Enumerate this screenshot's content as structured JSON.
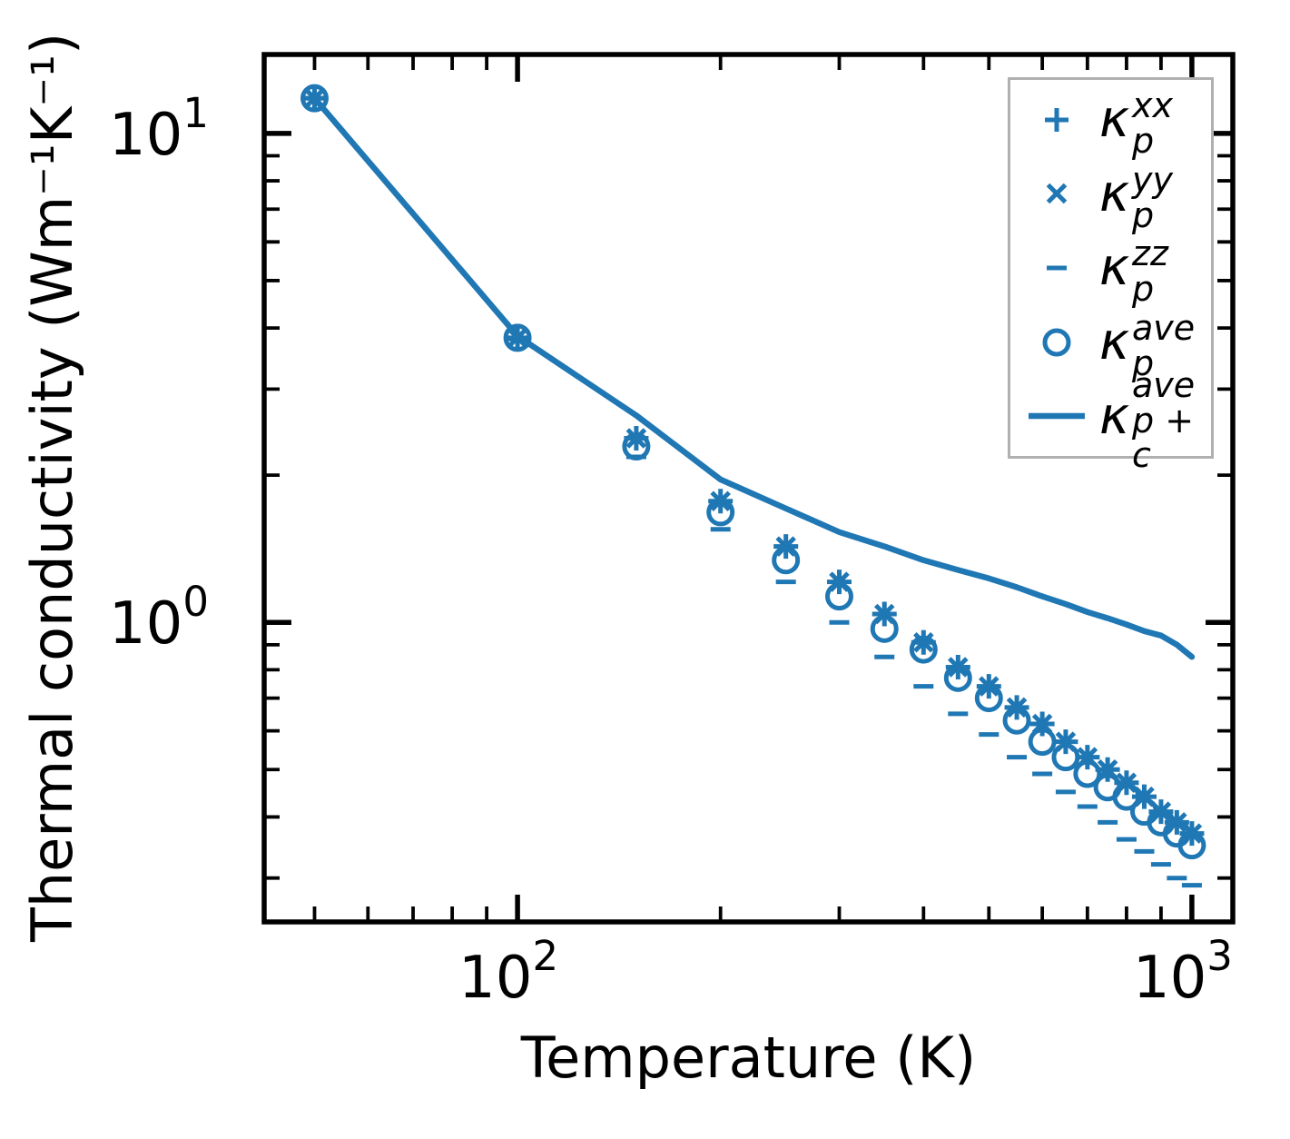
{
  "figure": {
    "background": "#ffffff",
    "accent_color": "#1f77b4",
    "axis_color": "#000000",
    "legend_border_color": "#b0b0b0"
  },
  "legend": {
    "items": [
      {
        "marker": "plus",
        "kappa": "κ",
        "sup": "xx",
        "sub": "p"
      },
      {
        "marker": "x",
        "kappa": "κ",
        "sup": "yy",
        "sub": "p"
      },
      {
        "marker": "hline",
        "kappa": "κ",
        "sup": "zz",
        "sub": "p"
      },
      {
        "marker": "circle",
        "kappa": "κ",
        "sup": "ave",
        "sub": "p"
      },
      {
        "marker": "line",
        "kappa": "κ",
        "sup": "ave",
        "sub": "p + c"
      }
    ]
  },
  "chart_data": {
    "type": "scatter",
    "x_scale": "log",
    "y_scale": "log",
    "title": "",
    "xlabel": "Temperature (K)",
    "ylabel": "Thermal conductivity (Wm⁻¹K⁻¹)",
    "xlim": [
      42.1,
      1150
    ],
    "ylim": [
      0.244,
      14.5
    ],
    "grid": false,
    "legend_position": "upper right",
    "color": "#1f77b4",
    "x_major_ticks": [
      100,
      1000
    ],
    "x_major_tick_labels": [
      {
        "base": "10",
        "exp": "2"
      },
      {
        "base": "10",
        "exp": "3"
      }
    ],
    "x_minor_ticks": [
      50,
      60,
      70,
      80,
      90,
      200,
      300,
      400,
      500,
      600,
      700,
      800,
      900
    ],
    "y_major_ticks": [
      1,
      10
    ],
    "y_major_tick_labels": [
      {
        "base": "10",
        "exp": "0"
      },
      {
        "base": "10",
        "exp": "1"
      }
    ],
    "y_minor_ticks": [
      0.3,
      0.4,
      0.5,
      0.6,
      0.7,
      0.8,
      0.9,
      2,
      3,
      4,
      5,
      6,
      7,
      8,
      9
    ],
    "x": [
      50,
      100,
      150,
      200,
      250,
      300,
      350,
      400,
      450,
      500,
      550,
      600,
      650,
      700,
      750,
      800,
      850,
      900,
      950,
      1000
    ],
    "series": [
      {
        "name": "kappa_p_xx",
        "marker": "plus",
        "values": [
          11.8,
          3.82,
          2.38,
          1.77,
          1.43,
          1.21,
          1.04,
          0.91,
          0.81,
          0.74,
          0.67,
          0.62,
          0.57,
          0.53,
          0.5,
          0.47,
          0.44,
          0.41,
          0.39,
          0.37
        ]
      },
      {
        "name": "kappa_p_yy",
        "marker": "x",
        "values": [
          11.8,
          3.82,
          2.38,
          1.77,
          1.43,
          1.21,
          1.04,
          0.91,
          0.81,
          0.74,
          0.67,
          0.62,
          0.57,
          0.53,
          0.5,
          0.47,
          0.44,
          0.41,
          0.39,
          0.37
        ]
      },
      {
        "name": "kappa_p_zz",
        "marker": "hline",
        "values": [
          11.8,
          3.8,
          2.18,
          1.55,
          1.21,
          1.0,
          0.85,
          0.74,
          0.65,
          0.59,
          0.53,
          0.49,
          0.45,
          0.42,
          0.39,
          0.36,
          0.34,
          0.32,
          0.3,
          0.29
        ]
      },
      {
        "name": "kappa_p_ave",
        "marker": "circle",
        "values": [
          11.8,
          3.82,
          2.29,
          1.68,
          1.34,
          1.13,
          0.97,
          0.88,
          0.77,
          0.7,
          0.63,
          0.57,
          0.53,
          0.49,
          0.46,
          0.44,
          0.41,
          0.39,
          0.37,
          0.35
        ]
      },
      {
        "name": "kappa_p_plus_c_ave",
        "marker": "line",
        "values": [
          11.8,
          3.85,
          2.65,
          1.96,
          1.71,
          1.53,
          1.43,
          1.34,
          1.28,
          1.23,
          1.18,
          1.13,
          1.09,
          1.05,
          1.02,
          0.99,
          0.96,
          0.94,
          0.9,
          0.85
        ]
      }
    ]
  }
}
